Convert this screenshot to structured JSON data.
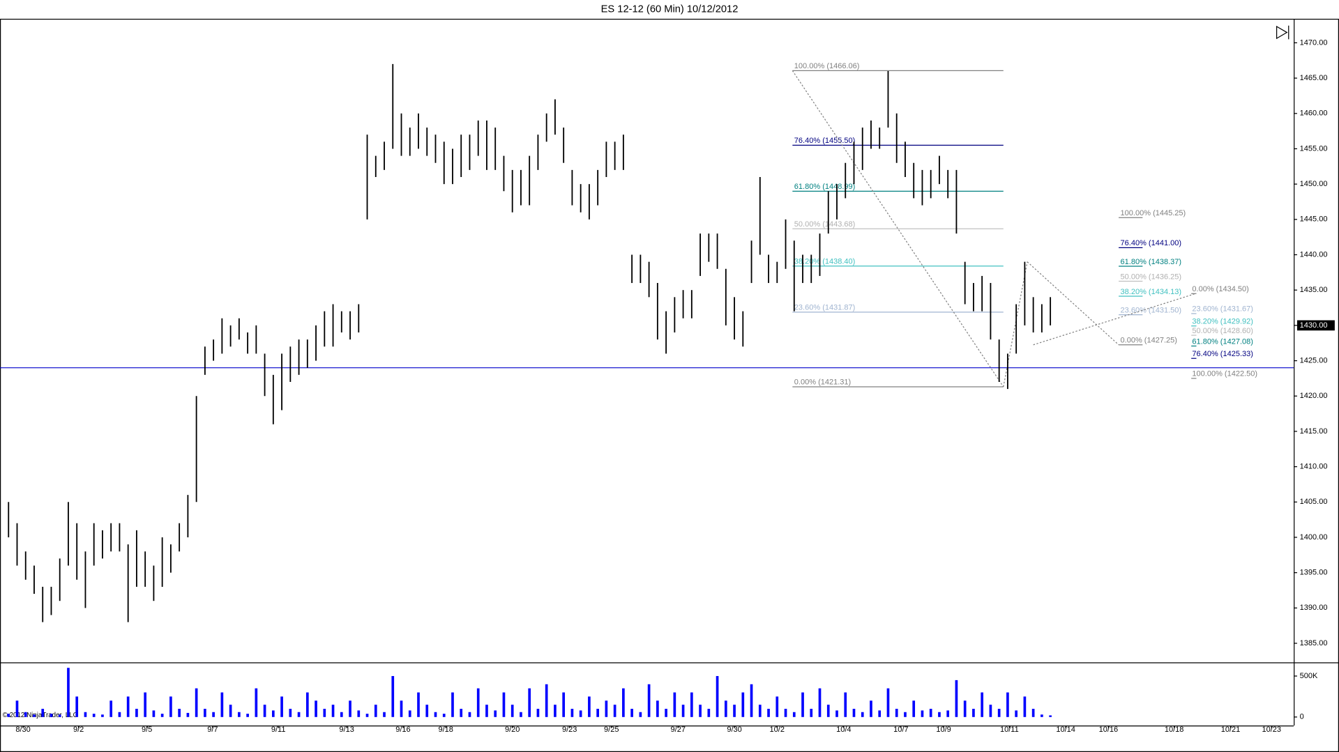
{
  "chart_data": {
    "type": "ohlc",
    "title": "ES 12-12 (60 Min)  10/12/2012",
    "copyright": "© 2012 NinjaTrader, LLC",
    "color": "#000000",
    "volume_color": "#0000ff",
    "ylim": [
      1382.3,
      1473.4
    ],
    "yticks": [
      {
        "value": 1385,
        "label": "1385.00"
      },
      {
        "value": 1390,
        "label": "1390.00"
      },
      {
        "value": 1395,
        "label": "1395.00"
      },
      {
        "value": 1400,
        "label": "1400.00"
      },
      {
        "value": 1405,
        "label": "1405.00"
      },
      {
        "value": 1410,
        "label": "1410.00"
      },
      {
        "value": 1415,
        "label": "1415.00"
      },
      {
        "value": 1420,
        "label": "1420.00"
      },
      {
        "value": 1425,
        "label": "1425.00"
      },
      {
        "value": 1430,
        "label": "1430.00"
      },
      {
        "value": 1435,
        "label": "1435.00"
      },
      {
        "value": 1440,
        "label": "1440.00"
      },
      {
        "value": 1445,
        "label": "1445.00"
      },
      {
        "value": 1450,
        "label": "1450.00"
      },
      {
        "value": 1455,
        "label": "1455.00"
      },
      {
        "value": 1460,
        "label": "1460.00"
      },
      {
        "value": 1465,
        "label": "1465.00"
      },
      {
        "value": 1470,
        "label": "1470.00"
      }
    ],
    "vlim": [
      -104000,
      646000
    ],
    "vticks": [
      {
        "value": 500000,
        "label": "500K"
      },
      0
    ],
    "xlim": [
      0,
      151.5
    ],
    "xticks": [
      {
        "value": 2.7,
        "label": "8/30"
      },
      {
        "value": 9.2,
        "label": "9/2"
      },
      {
        "value": 17.2,
        "label": "9/5"
      },
      {
        "value": 24.9,
        "label": "9/7"
      },
      {
        "value": 32.6,
        "label": "9/11"
      },
      {
        "value": 40.6,
        "label": "9/13"
      },
      {
        "value": 47.2,
        "label": "9/16"
      },
      {
        "value": 52.2,
        "label": "9/18"
      },
      {
        "value": 60.0,
        "label": "9/20"
      },
      {
        "value": 66.7,
        "label": "9/23"
      },
      {
        "value": 71.6,
        "label": "9/25"
      },
      {
        "value": 79.4,
        "label": "9/27"
      },
      {
        "value": 86.0,
        "label": "9/30"
      },
      {
        "value": 91.0,
        "label": "10/2"
      },
      {
        "value": 98.8,
        "label": "10/4"
      },
      {
        "value": 105.5,
        "label": "10/7"
      },
      {
        "value": 110.5,
        "label": "10/9"
      },
      {
        "value": 118.2,
        "label": "10/11"
      },
      {
        "value": 124.8,
        "label": "10/14"
      },
      {
        "value": 129.8,
        "label": "10/16"
      },
      {
        "value": 137.5,
        "label": "10/18"
      },
      {
        "value": 144.1,
        "label": "10/21"
      },
      {
        "value": 148.9,
        "label": "10/23"
      }
    ],
    "high": [
      1405,
      1402,
      1398,
      1396,
      1393,
      1393,
      1397,
      1405,
      1402,
      1398,
      1402,
      1401,
      1402,
      1402,
      1399,
      1401,
      1398,
      1396,
      1400,
      1399,
      1402,
      1406,
      1420,
      1427,
      1428,
      1431,
      1430,
      1431,
      1429,
      1430,
      1426,
      1423,
      1426,
      1427,
      1428,
      1428,
      1430,
      1432,
      1433,
      1432,
      1432,
      1433,
      1457,
      1454,
      1456,
      1467,
      1460,
      1458,
      1460,
      1458,
      1457,
      1456,
      1455,
      1457,
      1457,
      1459,
      1459,
      1458,
      1454,
      1452,
      1452,
      1454,
      1457,
      1460,
      1462,
      1458,
      1452,
      1450,
      1450,
      1452,
      1456,
      1456,
      1457,
      1440,
      1440,
      1439,
      1436,
      1432,
      1434,
      1435,
      1435,
      1443,
      1443,
      1443,
      1438,
      1434,
      1432,
      1442,
      1451,
      1440,
      1439,
      1445,
      1442,
      1440,
      1440,
      1443,
      1449,
      1450,
      1453,
      1456,
      1458,
      1459,
      1458,
      1466,
      1460,
      1456,
      1453,
      1452,
      1452,
      1454,
      1452,
      1452,
      1439,
      1436,
      1437,
      1436,
      1428,
      1426,
      1433,
      1439,
      1434,
      1433,
      1434
    ],
    "low": [
      1400,
      1396,
      1394,
      1392,
      1388,
      1389,
      1391,
      1396,
      1394,
      1390,
      1396,
      1397,
      1398,
      1398,
      1388,
      1393,
      1393,
      1391,
      1393,
      1395,
      1398,
      1400,
      1405,
      1423,
      1425,
      1426,
      1427,
      1428,
      1426,
      1426,
      1420,
      1416,
      1418,
      1422,
      1423,
      1424,
      1425,
      1427,
      1427,
      1429,
      1428,
      1429,
      1445,
      1451,
      1452,
      1455,
      1454,
      1454,
      1455,
      1454,
      1453,
      1450,
      1450,
      1451,
      1452,
      1454,
      1452,
      1452,
      1449,
      1446,
      1447,
      1447,
      1452,
      1456,
      1457,
      1453,
      1447,
      1446,
      1445,
      1447,
      1451,
      1452,
      1452,
      1436,
      1436,
      1434,
      1428,
      1426,
      1429,
      1431,
      1431,
      1437,
      1439,
      1438,
      1430,
      1428,
      1427,
      1436,
      1440,
      1436,
      1436,
      1438,
      1432,
      1436,
      1436,
      1437,
      1443,
      1445,
      1448,
      1450,
      1452,
      1455,
      1455,
      1458,
      1453,
      1451,
      1448,
      1447,
      1448,
      1450,
      1448,
      1443,
      1433,
      1432,
      1432,
      1428,
      1422,
      1421,
      1426,
      1430,
      1429,
      1429,
      1430
    ],
    "volume": [
      40000,
      200000,
      60000,
      30000,
      100000,
      40000,
      30000,
      600000,
      250000,
      60000,
      40000,
      30000,
      200000,
      60000,
      250000,
      100000,
      300000,
      80000,
      40000,
      250000,
      100000,
      50000,
      350000,
      100000,
      60000,
      300000,
      150000,
      60000,
      40000,
      350000,
      150000,
      80000,
      250000,
      100000,
      60000,
      300000,
      200000,
      100000,
      150000,
      60000,
      200000,
      80000,
      40000,
      150000,
      60000,
      500000,
      200000,
      80000,
      300000,
      150000,
      60000,
      40000,
      300000,
      100000,
      60000,
      350000,
      150000,
      80000,
      300000,
      150000,
      60000,
      350000,
      100000,
      400000,
      150000,
      300000,
      100000,
      80000,
      250000,
      100000,
      200000,
      150000,
      350000,
      100000,
      60000,
      400000,
      200000,
      100000,
      300000,
      150000,
      300000,
      150000,
      100000,
      500000,
      200000,
      150000,
      300000,
      400000,
      150000,
      100000,
      250000,
      100000,
      60000,
      300000,
      100000,
      350000,
      150000,
      80000,
      300000,
      100000,
      60000,
      200000,
      80000,
      350000,
      100000,
      60000,
      200000,
      80000,
      100000,
      60000,
      80000,
      450000,
      200000,
      100000,
      300000,
      150000,
      100000,
      300000,
      80000,
      250000,
      100000,
      30000,
      20000
    ],
    "hline": {
      "value": 1424,
      "color": "#0000cc"
    },
    "last_price": {
      "value": 1430,
      "label": "1430.00"
    },
    "fib_sets": [
      {
        "levels": [
          {
            "label": "100.00% (1466.06)",
            "value": 1466.06,
            "color": "#808080"
          },
          {
            "label": "76.40% (1455.50)",
            "value": 1455.5,
            "color": "#000080"
          },
          {
            "label": "61.80% (1448.99)",
            "value": 1448.99,
            "color": "#008080"
          },
          {
            "label": "50.00% (1443.68)",
            "value": 1443.68,
            "color": "#c0c0c0"
          },
          {
            "label": "38.20% (1438.40)",
            "value": 1438.4,
            "color": "#40c0c0"
          },
          {
            "label": "23.60% (1431.87)",
            "value": 1431.87,
            "color": "#a0b4d0"
          },
          {
            "label": "0.00% (1421.31)",
            "value": 1421.31,
            "color": "#808080"
          }
        ]
      },
      {
        "levels": [
          {
            "label": "100.00% (1445.25)",
            "value": 1445.25,
            "color": "#808080"
          },
          {
            "label": "76.40% (1441.00)",
            "value": 1441.0,
            "color": "#000080"
          },
          {
            "label": "61.80% (1438.37)",
            "value": 1438.37,
            "color": "#008080"
          },
          {
            "label": "50.00% (1436.25)",
            "value": 1436.25,
            "color": "#c0c0c0"
          },
          {
            "label": "38.20% (1434.13)",
            "value": 1434.13,
            "color": "#40c0c0"
          },
          {
            "label": "23.60% (1431.50)",
            "value": 1431.5,
            "color": "#a0b4d0"
          },
          {
            "label": "0.00% (1427.25)",
            "value": 1427.25,
            "color": "#808080"
          }
        ]
      },
      {
        "levels": [
          {
            "label": "0.00% (1434.50)",
            "value": 1434.5,
            "color": "#808080"
          },
          {
            "label": "23.60% (1431.67)",
            "value": 1431.67,
            "color": "#a0b4d0"
          },
          {
            "label": "38.20% (1429.92)",
            "value": 1429.92,
            "color": "#40c0c0"
          },
          {
            "label": "50.00% (1428.60)",
            "value": 1428.6,
            "color": "#c0c0c0"
          },
          {
            "label": "61.80% (1427.08)",
            "value": 1427.08,
            "color": "#008080"
          },
          {
            "label": "76.40% (1425.33)",
            "value": 1425.33,
            "color": "#000080"
          },
          {
            "label": "100.00% (1422.50)",
            "value": 1422.5,
            "color": "#808080"
          }
        ]
      }
    ]
  }
}
